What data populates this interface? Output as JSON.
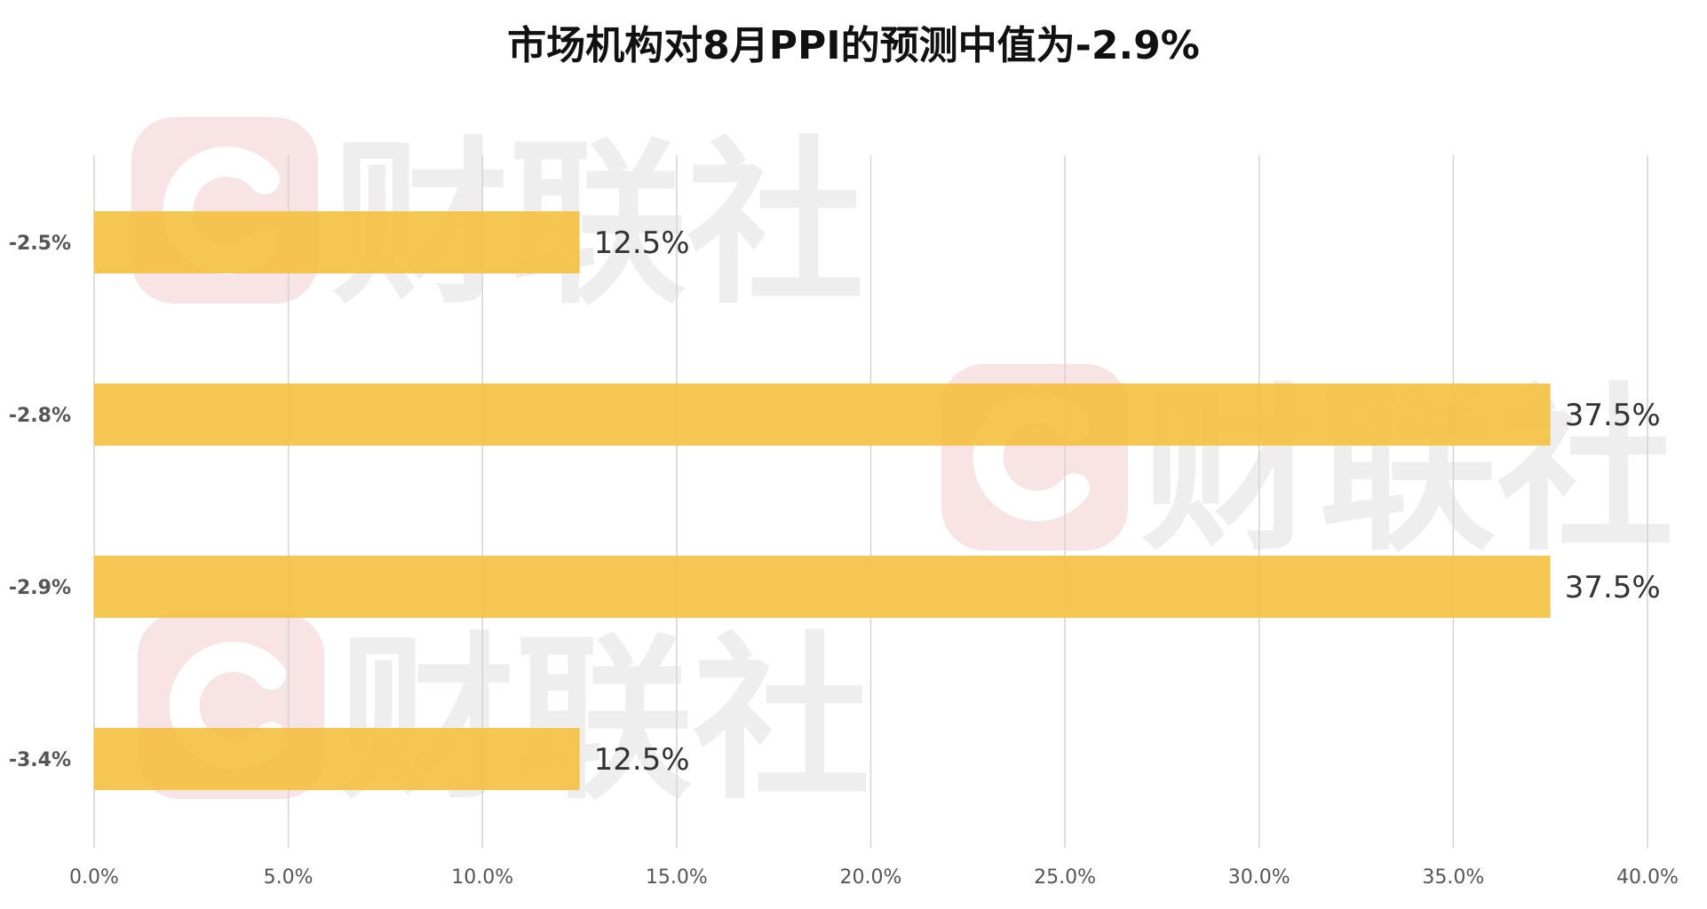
{
  "chart_data": {
    "type": "bar",
    "orientation": "horizontal",
    "title": "市场机构对8月PPI的预测中值为-2.9%",
    "categories": [
      "-2.5%",
      "-2.8%",
      "-2.9%",
      "-3.4%"
    ],
    "values": [
      12.5,
      37.5,
      37.5,
      12.5
    ],
    "data_labels": [
      "12.5%",
      "37.5%",
      "37.5%",
      "12.5%"
    ],
    "xlim": [
      0,
      40
    ],
    "x_ticks": [
      0,
      5,
      10,
      15,
      20,
      25,
      30,
      35,
      40
    ],
    "x_tick_labels": [
      "0.0%",
      "5.0%",
      "10.0%",
      "15.0%",
      "20.0%",
      "25.0%",
      "30.0%",
      "35.0%",
      "40.0%"
    ],
    "grid": "vertical",
    "bar_color": "#f4c143",
    "xlabel": "",
    "ylabel": ""
  },
  "watermark": {
    "text": "财联社",
    "logo_color": "#f6dcdc"
  }
}
